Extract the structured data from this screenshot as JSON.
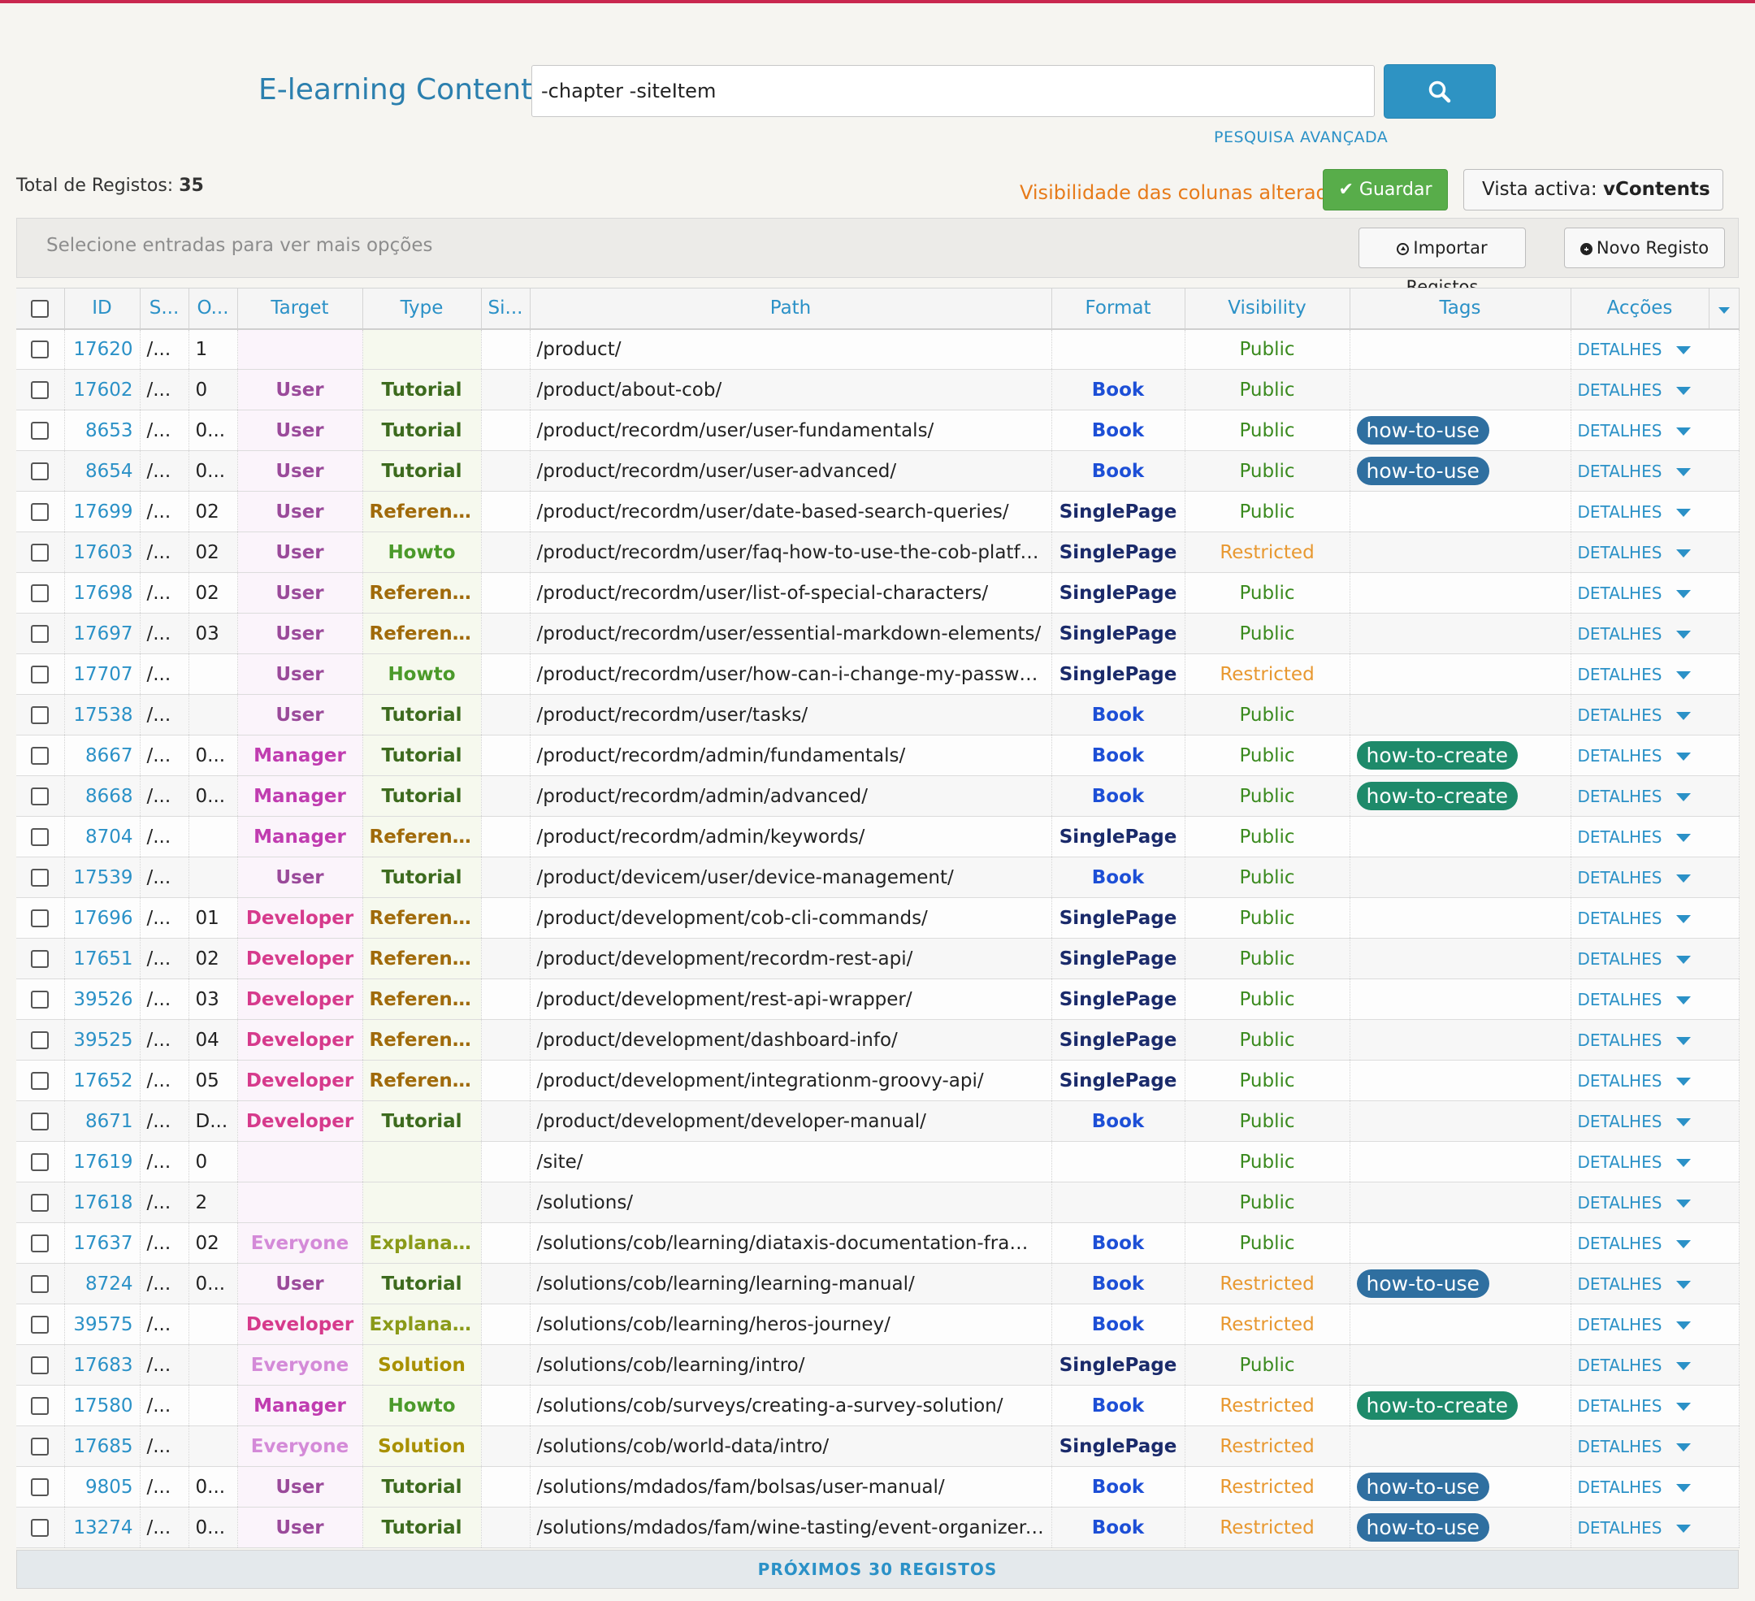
{
  "header": {
    "title": "E-learning Contents",
    "search_value": "-chapter -siteItem",
    "advanced_search": "PESQUISA AVANÇADA"
  },
  "toolbar": {
    "total_label": "Total de Registos:",
    "total_count": "35",
    "visibility_changed": "Visibilidade das colunas alterada",
    "save_label": "Guardar",
    "view_label": "Vista activa:",
    "view_name": "vContents",
    "select_hint": "Selecione entradas para ver mais opções",
    "import_label": "Importar Registos",
    "new_label": "Novo Registo"
  },
  "columns": [
    "ID",
    "S...",
    "O...",
    "Target",
    "Type",
    "Si...",
    "Path",
    "Format",
    "Visibility",
    "Tags",
    "Acções"
  ],
  "colors": {
    "accent": "#2b91c7",
    "target": {
      "User": "#9a4a9a",
      "Manager": "#c03cb0",
      "Developer": "#d63a8c",
      "Everyone": "#d48ad8"
    },
    "type": {
      "Tutorial": "#3d6b1e",
      "Reference": "#a06a0a",
      "Howto": "#4b9a2a",
      "Explanation": "#8a9a18",
      "Solution": "#a89000"
    },
    "format": {
      "Book": "#1d4fd6",
      "SinglePage": "#1a2a6a"
    },
    "visibility": {
      "Public": "#3a8a1e",
      "Restricted": "#e89830"
    },
    "tags": {
      "how-to-use": "#2f6fa0",
      "how-to-create": "#1e8a6a"
    }
  },
  "rows": [
    {
      "id": "17620",
      "s": "/...",
      "o": "1",
      "target": "",
      "type": "",
      "si": "",
      "path": "/product/",
      "format": "",
      "visibility": "Public",
      "tag": "",
      "action": "DETALHES"
    },
    {
      "id": "17602",
      "s": "/...",
      "o": "0",
      "target": "User",
      "type": "Tutorial",
      "si": "",
      "path": "/product/about-cob/",
      "format": "Book",
      "visibility": "Public",
      "tag": "",
      "action": "DETALHES"
    },
    {
      "id": "8653",
      "s": "/...",
      "o": "0...",
      "target": "User",
      "type": "Tutorial",
      "si": "",
      "path": "/product/recordm/user/user-fundamentals/",
      "format": "Book",
      "visibility": "Public",
      "tag": "how-to-use",
      "action": "DETALHES"
    },
    {
      "id": "8654",
      "s": "/...",
      "o": "0...",
      "target": "User",
      "type": "Tutorial",
      "si": "",
      "path": "/product/recordm/user/user-advanced/",
      "format": "Book",
      "visibility": "Public",
      "tag": "how-to-use",
      "action": "DETALHES"
    },
    {
      "id": "17699",
      "s": "/...",
      "o": "02",
      "target": "User",
      "type": "Reference",
      "si": "",
      "path": "/product/recordm/user/date-based-search-queries/",
      "format": "SinglePage",
      "visibility": "Public",
      "tag": "",
      "action": "DETALHES"
    },
    {
      "id": "17603",
      "s": "/...",
      "o": "02",
      "target": "User",
      "type": "Howto",
      "si": "",
      "path": "/product/recordm/user/faq-how-to-use-the-cob-platfo...",
      "format": "SinglePage",
      "visibility": "Restricted",
      "tag": "",
      "action": "DETALHES"
    },
    {
      "id": "17698",
      "s": "/...",
      "o": "02",
      "target": "User",
      "type": "Reference",
      "si": "",
      "path": "/product/recordm/user/list-of-special-characters/",
      "format": "SinglePage",
      "visibility": "Public",
      "tag": "",
      "action": "DETALHES"
    },
    {
      "id": "17697",
      "s": "/...",
      "o": "03",
      "target": "User",
      "type": "Reference",
      "si": "",
      "path": "/product/recordm/user/essential-markdown-elements/",
      "format": "SinglePage",
      "visibility": "Public",
      "tag": "",
      "action": "DETALHES"
    },
    {
      "id": "17707",
      "s": "/...",
      "o": "",
      "target": "User",
      "type": "Howto",
      "si": "",
      "path": "/product/recordm/user/how-can-i-change-my-passwor...",
      "format": "SinglePage",
      "visibility": "Restricted",
      "tag": "",
      "action": "DETALHES"
    },
    {
      "id": "17538",
      "s": "/...",
      "o": "",
      "target": "User",
      "type": "Tutorial",
      "si": "",
      "path": "/product/recordm/user/tasks/",
      "format": "Book",
      "visibility": "Public",
      "tag": "",
      "action": "DETALHES"
    },
    {
      "id": "8667",
      "s": "/...",
      "o": "0...",
      "target": "Manager",
      "type": "Tutorial",
      "si": "",
      "path": "/product/recordm/admin/fundamentals/",
      "format": "Book",
      "visibility": "Public",
      "tag": "how-to-create",
      "action": "DETALHES"
    },
    {
      "id": "8668",
      "s": "/...",
      "o": "0...",
      "target": "Manager",
      "type": "Tutorial",
      "si": "",
      "path": "/product/recordm/admin/advanced/",
      "format": "Book",
      "visibility": "Public",
      "tag": "how-to-create",
      "action": "DETALHES"
    },
    {
      "id": "8704",
      "s": "/...",
      "o": "",
      "target": "Manager",
      "type": "Reference",
      "si": "",
      "path": "/product/recordm/admin/keywords/",
      "format": "SinglePage",
      "visibility": "Public",
      "tag": "",
      "action": "DETALHES"
    },
    {
      "id": "17539",
      "s": "/...",
      "o": "",
      "target": "User",
      "type": "Tutorial",
      "si": "",
      "path": "/product/devicem/user/device-management/",
      "format": "Book",
      "visibility": "Public",
      "tag": "",
      "action": "DETALHES"
    },
    {
      "id": "17696",
      "s": "/...",
      "o": "01",
      "target": "Developer",
      "type": "Reference",
      "si": "",
      "path": "/product/development/cob-cli-commands/",
      "format": "SinglePage",
      "visibility": "Public",
      "tag": "",
      "action": "DETALHES"
    },
    {
      "id": "17651",
      "s": "/...",
      "o": "02",
      "target": "Developer",
      "type": "Reference",
      "si": "",
      "path": "/product/development/recordm-rest-api/",
      "format": "SinglePage",
      "visibility": "Public",
      "tag": "",
      "action": "DETALHES"
    },
    {
      "id": "39526",
      "s": "/...",
      "o": "03",
      "target": "Developer",
      "type": "Reference",
      "si": "",
      "path": "/product/development/rest-api-wrapper/",
      "format": "SinglePage",
      "visibility": "Public",
      "tag": "",
      "action": "DETALHES"
    },
    {
      "id": "39525",
      "s": "/...",
      "o": "04",
      "target": "Developer",
      "type": "Reference",
      "si": "",
      "path": "/product/development/dashboard-info/",
      "format": "SinglePage",
      "visibility": "Public",
      "tag": "",
      "action": "DETALHES"
    },
    {
      "id": "17652",
      "s": "/...",
      "o": "05",
      "target": "Developer",
      "type": "Reference",
      "si": "",
      "path": "/product/development/integrationm-groovy-api/",
      "format": "SinglePage",
      "visibility": "Public",
      "tag": "",
      "action": "DETALHES"
    },
    {
      "id": "8671",
      "s": "/...",
      "o": "D...",
      "target": "Developer",
      "type": "Tutorial",
      "si": "",
      "path": "/product/development/developer-manual/",
      "format": "Book",
      "visibility": "Public",
      "tag": "",
      "action": "DETALHES"
    },
    {
      "id": "17619",
      "s": "/...",
      "o": "0",
      "target": "",
      "type": "",
      "si": "",
      "path": "/site/",
      "format": "",
      "visibility": "Public",
      "tag": "",
      "action": "DETALHES"
    },
    {
      "id": "17618",
      "s": "/...",
      "o": "2",
      "target": "",
      "type": "",
      "si": "",
      "path": "/solutions/",
      "format": "",
      "visibility": "Public",
      "tag": "",
      "action": "DETALHES"
    },
    {
      "id": "17637",
      "s": "/...",
      "o": "02",
      "target": "Everyone",
      "type": "Explanation",
      "si": "",
      "path": "/solutions/cob/learning/diataxis-documentation-frame...",
      "format": "Book",
      "visibility": "Public",
      "tag": "",
      "action": "DETALHES"
    },
    {
      "id": "8724",
      "s": "/...",
      "o": "0...",
      "target": "User",
      "type": "Tutorial",
      "si": "",
      "path": "/solutions/cob/learning/learning-manual/",
      "format": "Book",
      "visibility": "Restricted",
      "tag": "how-to-use",
      "action": "DETALHES"
    },
    {
      "id": "39575",
      "s": "/...",
      "o": "",
      "target": "Developer",
      "type": "Explanation",
      "si": "",
      "path": "/solutions/cob/learning/heros-journey/",
      "format": "Book",
      "visibility": "Restricted",
      "tag": "",
      "action": "DETALHES"
    },
    {
      "id": "17683",
      "s": "/...",
      "o": "",
      "target": "Everyone",
      "type": "Solution",
      "si": "",
      "path": "/solutions/cob/learning/intro/",
      "format": "SinglePage",
      "visibility": "Public",
      "tag": "",
      "action": "DETALHES"
    },
    {
      "id": "17580",
      "s": "/...",
      "o": "",
      "target": "Manager",
      "type": "Howto",
      "si": "",
      "path": "/solutions/cob/surveys/creating-a-survey-solution/",
      "format": "Book",
      "visibility": "Restricted",
      "tag": "how-to-create",
      "action": "DETALHES"
    },
    {
      "id": "17685",
      "s": "/...",
      "o": "",
      "target": "Everyone",
      "type": "Solution",
      "si": "",
      "path": "/solutions/cob/world-data/intro/",
      "format": "SinglePage",
      "visibility": "Restricted",
      "tag": "",
      "action": "DETALHES"
    },
    {
      "id": "9805",
      "s": "/...",
      "o": "0...",
      "target": "User",
      "type": "Tutorial",
      "si": "",
      "path": "/solutions/mdados/fam/bolsas/user-manual/",
      "format": "Book",
      "visibility": "Restricted",
      "tag": "how-to-use",
      "action": "DETALHES"
    },
    {
      "id": "13274",
      "s": "/...",
      "o": "0...",
      "target": "User",
      "type": "Tutorial",
      "si": "",
      "path": "/solutions/mdados/fam/wine-tasting/event-organizer-...",
      "format": "Book",
      "visibility": "Restricted",
      "tag": "how-to-use",
      "action": "DETALHES"
    }
  ],
  "pagination": {
    "next_label": "PRÓXIMOS 30 REGISTOS"
  }
}
